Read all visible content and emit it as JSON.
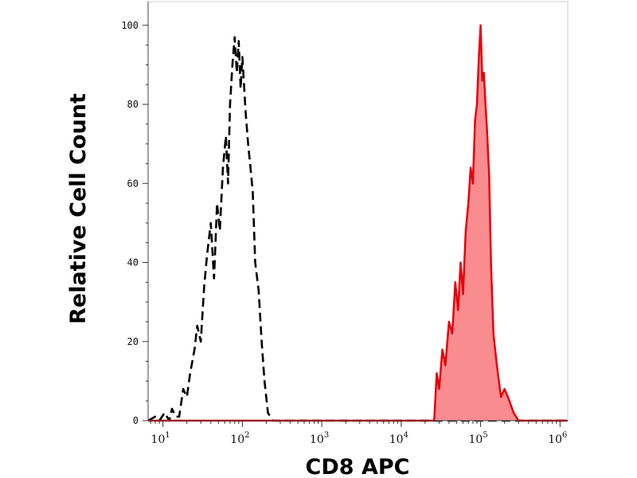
{
  "chart_data": {
    "type": "area",
    "xlabel": "CD8 APC",
    "ylabel": "Relative Cell Count",
    "x_scale": "log",
    "xlim": [
      6.5,
      1250000
    ],
    "ylim": [
      0,
      106
    ],
    "grid": false,
    "x_ticks": [
      {
        "value": 10,
        "base": "10",
        "exp": "1"
      },
      {
        "value": 100,
        "base": "10",
        "exp": "2"
      },
      {
        "value": 1000,
        "base": "10",
        "exp": "3"
      },
      {
        "value": 10000,
        "base": "10",
        "exp": "4"
      },
      {
        "value": 100000,
        "base": "10",
        "exp": "5"
      },
      {
        "value": 1000000,
        "base": "10",
        "exp": "6"
      }
    ],
    "y_ticks": [
      {
        "value": 0,
        "label": "0"
      },
      {
        "value": 20,
        "label": "20"
      },
      {
        "value": 40,
        "label": "40"
      },
      {
        "value": 60,
        "label": "60"
      },
      {
        "value": 80,
        "label": "80"
      },
      {
        "value": 100,
        "label": "100"
      }
    ],
    "colors": {
      "stained_line": "#e8000b",
      "stained_fill": "#f98c8f",
      "control_line": "#000000"
    },
    "series": [
      {
        "style": "dashed-outline",
        "x": [
          6.5,
          8,
          9,
          10.5,
          12,
          13,
          14.5,
          16,
          18,
          20,
          22,
          25,
          27,
          30,
          33,
          36,
          40,
          44,
          48,
          52,
          57,
          62,
          66,
          70,
          75,
          80,
          85,
          90,
          95,
          100,
          110,
          118,
          125,
          135,
          145,
          160,
          175,
          190,
          210,
          240,
          300,
          500,
          1000,
          5000,
          20000,
          1250000
        ],
        "y": [
          0,
          1,
          0,
          2,
          0,
          3,
          1,
          1,
          8,
          6,
          12,
          18,
          24,
          20,
          34,
          42,
          50,
          36,
          55,
          48,
          64,
          72,
          60,
          80,
          90,
          97,
          88,
          96,
          84,
          92,
          78,
          70,
          65,
          58,
          40,
          33,
          20,
          10,
          2,
          0,
          0,
          0,
          0,
          0,
          0,
          0
        ]
      },
      {
        "style": "filled",
        "x": [
          6.5,
          1000,
          20000,
          26000,
          28000,
          30000,
          33000,
          36000,
          40000,
          44000,
          48000,
          52000,
          56000,
          60000,
          65000,
          70000,
          75000,
          80000,
          85000,
          90000,
          95000,
          100000,
          105000,
          110000,
          115000,
          120000,
          128000,
          135000,
          145000,
          160000,
          180000,
          200000,
          220000,
          240000,
          260000,
          300000,
          1250000
        ],
        "y": [
          0,
          0,
          0,
          0,
          12,
          8,
          18,
          14,
          25,
          22,
          35,
          28,
          40,
          32,
          48,
          55,
          64,
          60,
          76,
          80,
          92,
          100,
          86,
          88,
          80,
          74,
          62,
          40,
          22,
          14,
          6,
          8,
          6,
          4,
          2,
          0,
          0
        ]
      }
    ]
  }
}
